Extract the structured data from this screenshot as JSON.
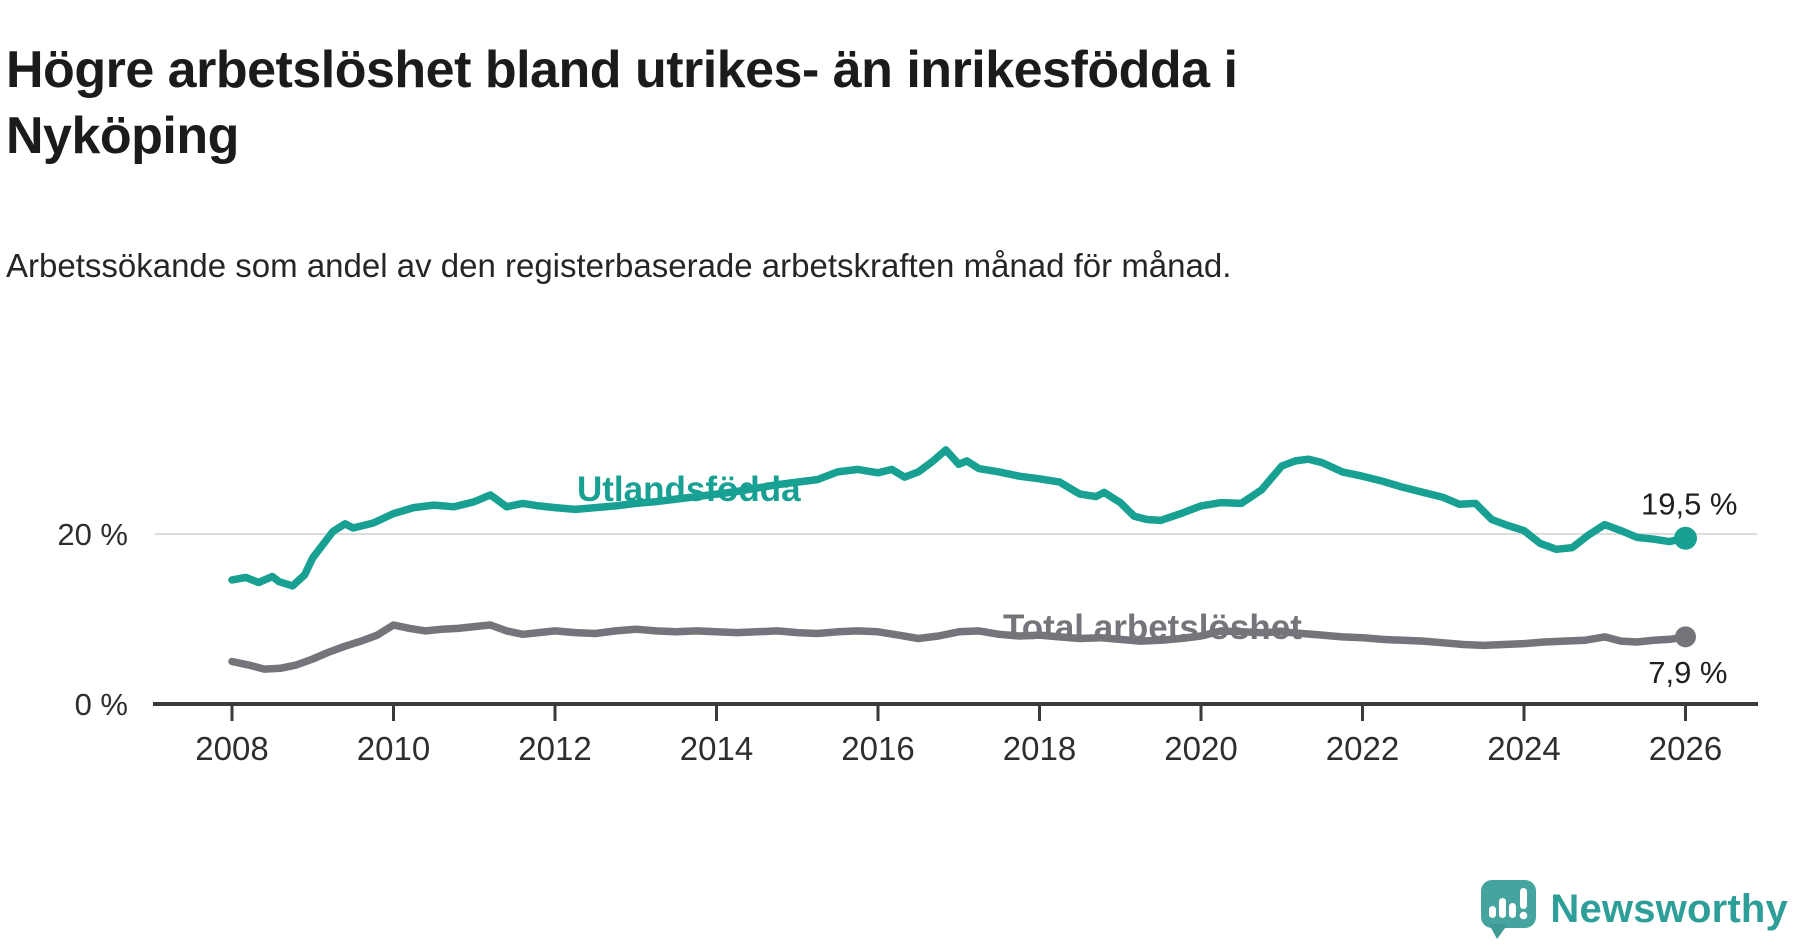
{
  "title": "Högre arbetslöshet bland utrikes- än inrikesfödda i Nyköping",
  "subtitle": "Arbetssökande som andel av den registerbaserade arbetskraften månad för månad.",
  "branding": {
    "logo_text": "Newsworthy",
    "logo_icon": "newsworthy-chart-bubble-icon"
  },
  "colors": {
    "series_utlandsfodda": "#18a093",
    "series_total": "#74747a",
    "axis": "#3a3a3a",
    "gridline": "#dcdcdc",
    "axis_text": "#2e2e2e",
    "value_label_text": "#1f1f1f",
    "logo_teal": "#46a49f",
    "logo_text_teal": "#2e9e98"
  },
  "chart_data": {
    "type": "line",
    "title": "Högre arbetslöshet bland utrikes- än inrikesfödda i Nyköping",
    "subtitle": "Arbetssökande som andel av den registerbaserade arbetskraften månad för månad.",
    "unit": "percent",
    "grid": "horizontal-20-only",
    "legend_position": "inline-on-line",
    "x_axis": {
      "min": 2008,
      "max": 2026.5,
      "ticks": [
        2008,
        2010,
        2012,
        2014,
        2016,
        2018,
        2020,
        2022,
        2024,
        2026
      ]
    },
    "y_axis": {
      "min": 0,
      "max_visible": 31,
      "baseline": {
        "value": 0,
        "label": "0 %"
      },
      "gridlines": [
        {
          "value": 20,
          "label": "20 %"
        }
      ]
    },
    "series": [
      {
        "name": "Utlandsfödda",
        "color": "#18a093",
        "end_value": 19.5,
        "end_label": "19,5 %",
        "points": [
          [
            2008.0,
            14.6
          ],
          [
            2008.17,
            14.9
          ],
          [
            2008.33,
            14.3
          ],
          [
            2008.5,
            15.0
          ],
          [
            2008.58,
            14.4
          ],
          [
            2008.75,
            13.9
          ],
          [
            2008.9,
            15.2
          ],
          [
            2009.0,
            17.2
          ],
          [
            2009.25,
            20.3
          ],
          [
            2009.4,
            21.2
          ],
          [
            2009.5,
            20.7
          ],
          [
            2009.75,
            21.3
          ],
          [
            2010.0,
            22.4
          ],
          [
            2010.25,
            23.1
          ],
          [
            2010.5,
            23.4
          ],
          [
            2010.75,
            23.2
          ],
          [
            2011.0,
            23.8
          ],
          [
            2011.2,
            24.6
          ],
          [
            2011.4,
            23.2
          ],
          [
            2011.6,
            23.6
          ],
          [
            2011.8,
            23.3
          ],
          [
            2012.0,
            23.1
          ],
          [
            2012.25,
            22.9
          ],
          [
            2012.5,
            23.1
          ],
          [
            2012.75,
            23.3
          ],
          [
            2013.0,
            23.6
          ],
          [
            2013.25,
            23.8
          ],
          [
            2013.5,
            24.1
          ],
          [
            2013.75,
            24.4
          ],
          [
            2014.0,
            24.7
          ],
          [
            2014.25,
            25.0
          ],
          [
            2014.5,
            25.4
          ],
          [
            2014.75,
            25.8
          ],
          [
            2015.0,
            26.1
          ],
          [
            2015.25,
            26.4
          ],
          [
            2015.5,
            27.3
          ],
          [
            2015.75,
            27.6
          ],
          [
            2016.0,
            27.2
          ],
          [
            2016.17,
            27.6
          ],
          [
            2016.33,
            26.7
          ],
          [
            2016.5,
            27.3
          ],
          [
            2016.67,
            28.5
          ],
          [
            2016.84,
            29.9
          ],
          [
            2017.0,
            28.2
          ],
          [
            2017.1,
            28.6
          ],
          [
            2017.25,
            27.7
          ],
          [
            2017.5,
            27.3
          ],
          [
            2017.75,
            26.8
          ],
          [
            2018.0,
            26.5
          ],
          [
            2018.25,
            26.1
          ],
          [
            2018.5,
            24.7
          ],
          [
            2018.7,
            24.4
          ],
          [
            2018.8,
            24.9
          ],
          [
            2019.0,
            23.7
          ],
          [
            2019.17,
            22.1
          ],
          [
            2019.33,
            21.7
          ],
          [
            2019.5,
            21.6
          ],
          [
            2019.75,
            22.4
          ],
          [
            2020.0,
            23.3
          ],
          [
            2020.25,
            23.7
          ],
          [
            2020.5,
            23.6
          ],
          [
            2020.75,
            25.2
          ],
          [
            2021.0,
            28.0
          ],
          [
            2021.17,
            28.6
          ],
          [
            2021.33,
            28.8
          ],
          [
            2021.5,
            28.4
          ],
          [
            2021.75,
            27.3
          ],
          [
            2022.0,
            26.8
          ],
          [
            2022.25,
            26.2
          ],
          [
            2022.5,
            25.5
          ],
          [
            2022.75,
            24.9
          ],
          [
            2023.0,
            24.3
          ],
          [
            2023.2,
            23.5
          ],
          [
            2023.4,
            23.6
          ],
          [
            2023.6,
            21.7
          ],
          [
            2023.8,
            21.0
          ],
          [
            2024.0,
            20.4
          ],
          [
            2024.2,
            18.9
          ],
          [
            2024.4,
            18.2
          ],
          [
            2024.6,
            18.4
          ],
          [
            2024.8,
            19.9
          ],
          [
            2025.0,
            21.1
          ],
          [
            2025.2,
            20.4
          ],
          [
            2025.4,
            19.6
          ],
          [
            2025.6,
            19.4
          ],
          [
            2025.8,
            19.1
          ],
          [
            2026.0,
            19.5
          ]
        ]
      },
      {
        "name": "Total arbetslöshet",
        "color": "#74747a",
        "end_value": 7.9,
        "end_label": "7,9 %",
        "points": [
          [
            2008.0,
            5.0
          ],
          [
            2008.2,
            4.6
          ],
          [
            2008.4,
            4.1
          ],
          [
            2008.6,
            4.2
          ],
          [
            2008.8,
            4.6
          ],
          [
            2009.0,
            5.3
          ],
          [
            2009.2,
            6.1
          ],
          [
            2009.4,
            6.8
          ],
          [
            2009.6,
            7.4
          ],
          [
            2009.8,
            8.1
          ],
          [
            2010.0,
            9.3
          ],
          [
            2010.2,
            8.9
          ],
          [
            2010.4,
            8.6
          ],
          [
            2010.6,
            8.8
          ],
          [
            2010.8,
            8.9
          ],
          [
            2011.0,
            9.1
          ],
          [
            2011.2,
            9.3
          ],
          [
            2011.4,
            8.6
          ],
          [
            2011.6,
            8.2
          ],
          [
            2011.8,
            8.4
          ],
          [
            2012.0,
            8.6
          ],
          [
            2012.25,
            8.4
          ],
          [
            2012.5,
            8.3
          ],
          [
            2012.75,
            8.6
          ],
          [
            2013.0,
            8.8
          ],
          [
            2013.25,
            8.6
          ],
          [
            2013.5,
            8.5
          ],
          [
            2013.75,
            8.6
          ],
          [
            2014.0,
            8.5
          ],
          [
            2014.25,
            8.4
          ],
          [
            2014.5,
            8.5
          ],
          [
            2014.75,
            8.6
          ],
          [
            2015.0,
            8.4
          ],
          [
            2015.25,
            8.3
          ],
          [
            2015.5,
            8.5
          ],
          [
            2015.75,
            8.6
          ],
          [
            2016.0,
            8.5
          ],
          [
            2016.25,
            8.1
          ],
          [
            2016.5,
            7.7
          ],
          [
            2016.75,
            8.0
          ],
          [
            2017.0,
            8.5
          ],
          [
            2017.25,
            8.6
          ],
          [
            2017.5,
            8.2
          ],
          [
            2017.75,
            8.0
          ],
          [
            2018.0,
            8.1
          ],
          [
            2018.25,
            7.9
          ],
          [
            2018.5,
            7.7
          ],
          [
            2018.75,
            7.8
          ],
          [
            2019.0,
            7.6
          ],
          [
            2019.25,
            7.4
          ],
          [
            2019.5,
            7.5
          ],
          [
            2019.75,
            7.7
          ],
          [
            2020.0,
            8.0
          ],
          [
            2020.25,
            8.6
          ],
          [
            2020.5,
            8.5
          ],
          [
            2020.75,
            8.4
          ],
          [
            2021.0,
            8.5
          ],
          [
            2021.25,
            8.3
          ],
          [
            2021.5,
            8.1
          ],
          [
            2021.75,
            7.9
          ],
          [
            2022.0,
            7.8
          ],
          [
            2022.25,
            7.6
          ],
          [
            2022.5,
            7.5
          ],
          [
            2022.75,
            7.4
          ],
          [
            2023.0,
            7.2
          ],
          [
            2023.25,
            7.0
          ],
          [
            2023.5,
            6.9
          ],
          [
            2023.75,
            7.0
          ],
          [
            2024.0,
            7.1
          ],
          [
            2024.25,
            7.3
          ],
          [
            2024.5,
            7.4
          ],
          [
            2024.75,
            7.5
          ],
          [
            2025.0,
            7.9
          ],
          [
            2025.2,
            7.4
          ],
          [
            2025.4,
            7.3
          ],
          [
            2025.6,
            7.5
          ],
          [
            2025.8,
            7.6
          ],
          [
            2026.0,
            7.9
          ]
        ]
      }
    ]
  }
}
